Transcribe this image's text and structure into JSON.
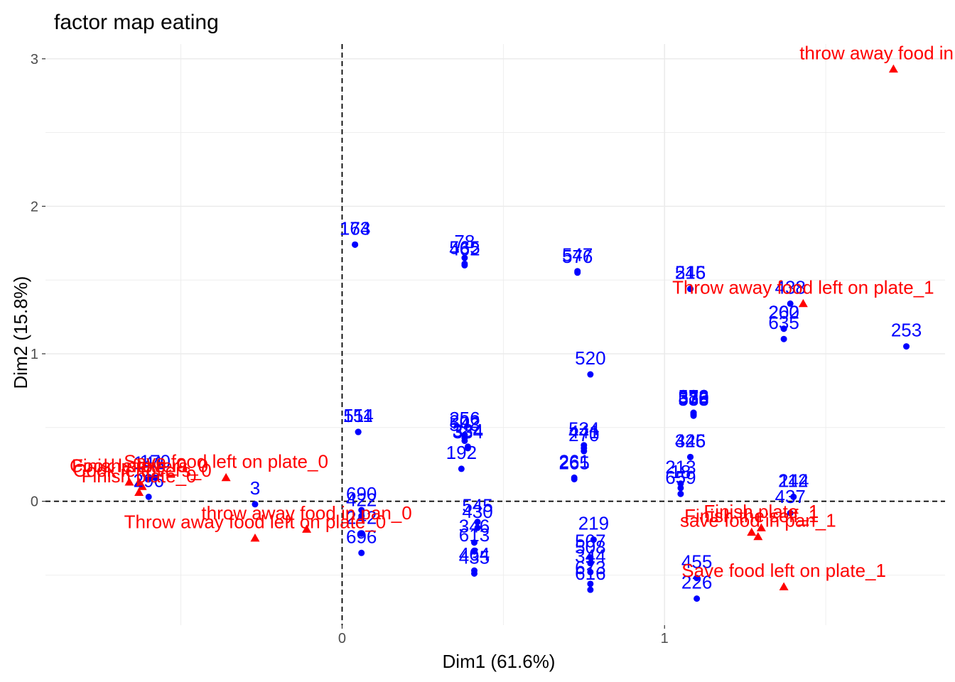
{
  "chart_data": {
    "type": "scatter",
    "title": "factor map eating",
    "xlabel": "Dim1 (61.6%)",
    "ylabel": "Dim2 (15.8%)",
    "xlim": [
      -0.92,
      1.87
    ],
    "ylim": [
      -0.84,
      3.1
    ],
    "x_ticks": [
      0,
      1
    ],
    "y_ticks": [
      0,
      1,
      2,
      3
    ],
    "grid": true,
    "reference_lines": {
      "x": 0,
      "y": 0,
      "style": "dashed"
    },
    "colors": {
      "individuals": "#0000ff",
      "variables": "#ff0000",
      "grid": "#ebebeb"
    },
    "individuals": [
      {
        "x": 0.04,
        "y": 1.74,
        "label": "173"
      },
      {
        "x": 0.04,
        "y": 1.74,
        "label": "164"
      },
      {
        "x": 0.38,
        "y": 1.65,
        "label": "78"
      },
      {
        "x": 0.38,
        "y": 1.61,
        "label": "565"
      },
      {
        "x": 0.38,
        "y": 1.6,
        "label": "462"
      },
      {
        "x": 0.73,
        "y": 1.56,
        "label": "547"
      },
      {
        "x": 0.73,
        "y": 1.55,
        "label": "576"
      },
      {
        "x": 1.08,
        "y": 1.44,
        "label": "545"
      },
      {
        "x": 1.08,
        "y": 1.44,
        "label": "216"
      },
      {
        "x": 1.39,
        "y": 1.34,
        "label": "438"
      },
      {
        "x": 1.37,
        "y": 1.17,
        "label": "260"
      },
      {
        "x": 1.37,
        "y": 1.17,
        "label": "202"
      },
      {
        "x": 1.37,
        "y": 1.1,
        "label": "635"
      },
      {
        "x": 1.75,
        "y": 1.05,
        "label": "253"
      },
      {
        "x": 0.77,
        "y": 0.86,
        "label": "520"
      },
      {
        "x": 1.09,
        "y": 0.6,
        "label": "573"
      },
      {
        "x": 1.09,
        "y": 0.6,
        "label": "382"
      },
      {
        "x": 1.09,
        "y": 0.59,
        "label": "378"
      },
      {
        "x": 1.09,
        "y": 0.59,
        "label": "330"
      },
      {
        "x": 1.09,
        "y": 0.58,
        "label": "538"
      },
      {
        "x": 0.05,
        "y": 0.47,
        "label": "511"
      },
      {
        "x": 0.05,
        "y": 0.47,
        "label": "154"
      },
      {
        "x": 0.38,
        "y": 0.45,
        "label": "256"
      },
      {
        "x": 0.38,
        "y": 0.43,
        "label": "302"
      },
      {
        "x": 0.38,
        "y": 0.41,
        "label": "543"
      },
      {
        "x": 0.39,
        "y": 0.37,
        "label": "384"
      },
      {
        "x": 0.39,
        "y": 0.36,
        "label": "334"
      },
      {
        "x": 0.37,
        "y": 0.22,
        "label": "192"
      },
      {
        "x": 0.75,
        "y": 0.38,
        "label": "534"
      },
      {
        "x": 0.75,
        "y": 0.36,
        "label": "441"
      },
      {
        "x": 0.75,
        "y": 0.34,
        "label": "270"
      },
      {
        "x": 0.72,
        "y": 0.16,
        "label": "261"
      },
      {
        "x": 0.72,
        "y": 0.15,
        "label": "265"
      },
      {
        "x": 1.08,
        "y": 0.3,
        "label": "326"
      },
      {
        "x": 1.08,
        "y": 0.3,
        "label": "445"
      },
      {
        "x": 1.05,
        "y": 0.12,
        "label": "213"
      },
      {
        "x": 1.05,
        "y": 0.09,
        "label": "18"
      },
      {
        "x": 1.05,
        "y": 0.05,
        "label": "659"
      },
      {
        "x": 1.4,
        "y": 0.03,
        "label": "244"
      },
      {
        "x": 1.4,
        "y": 0.03,
        "label": "112"
      },
      {
        "x": -0.27,
        "y": -0.02,
        "label": "3"
      },
      {
        "x": -0.58,
        "y": 0.16,
        "label": "170"
      },
      {
        "x": -0.6,
        "y": 0.15,
        "label": "141"
      },
      {
        "x": -0.6,
        "y": 0.03,
        "label": "296"
      },
      {
        "x": 0.06,
        "y": -0.06,
        "label": "690"
      },
      {
        "x": 0.06,
        "y": -0.1,
        "label": "422"
      },
      {
        "x": 0.06,
        "y": -0.22,
        "label": "242"
      },
      {
        "x": 0.06,
        "y": -0.35,
        "label": "696"
      },
      {
        "x": 0.42,
        "y": -0.14,
        "label": "545"
      },
      {
        "x": 0.42,
        "y": -0.18,
        "label": "430"
      },
      {
        "x": 0.41,
        "y": -0.28,
        "label": "346"
      },
      {
        "x": 0.41,
        "y": -0.34,
        "label": "613"
      },
      {
        "x": 0.41,
        "y": -0.47,
        "label": "464"
      },
      {
        "x": 0.41,
        "y": -0.49,
        "label": "435"
      },
      {
        "x": 0.78,
        "y": -0.26,
        "label": "219"
      },
      {
        "x": 0.77,
        "y": -0.38,
        "label": "507"
      },
      {
        "x": 0.77,
        "y": -0.42,
        "label": "508"
      },
      {
        "x": 0.77,
        "y": -0.48,
        "label": "344"
      },
      {
        "x": 0.77,
        "y": -0.56,
        "label": "673"
      },
      {
        "x": 0.77,
        "y": -0.6,
        "label": "616"
      },
      {
        "x": 1.1,
        "y": -0.52,
        "label": "455"
      },
      {
        "x": 1.1,
        "y": -0.66,
        "label": "226"
      },
      {
        "x": 1.39,
        "y": -0.08,
        "label": "437"
      }
    ],
    "variables": [
      {
        "x": 1.71,
        "y": 2.93,
        "label": "throw away food in"
      },
      {
        "x": 1.43,
        "y": 1.34,
        "label": "Throw away food left on plate_1"
      },
      {
        "x": -0.36,
        "y": 0.16,
        "label": "Save food left on plate_0"
      },
      {
        "x": -0.63,
        "y": 0.13,
        "label": "Cook leftovers_0"
      },
      {
        "x": -0.62,
        "y": 0.1,
        "label": "Cook leftovers_0"
      },
      {
        "x": -0.63,
        "y": 0.06,
        "label": "Finish plate_0"
      },
      {
        "x": -0.66,
        "y": 0.13,
        "label": "Finish plate_0"
      },
      {
        "x": -0.27,
        "y": -0.25,
        "label": "Throw away food left on plate_0"
      },
      {
        "x": -0.11,
        "y": -0.19,
        "label": "throw away food in pan_0"
      },
      {
        "x": 1.3,
        "y": -0.18,
        "label": "Finish plate_1"
      },
      {
        "x": 1.27,
        "y": -0.21,
        "label": "Finish the self_1"
      },
      {
        "x": 1.29,
        "y": -0.24,
        "label": "save food in pan_1"
      },
      {
        "x": 1.37,
        "y": -0.58,
        "label": "Save food left on plate_1"
      }
    ]
  }
}
